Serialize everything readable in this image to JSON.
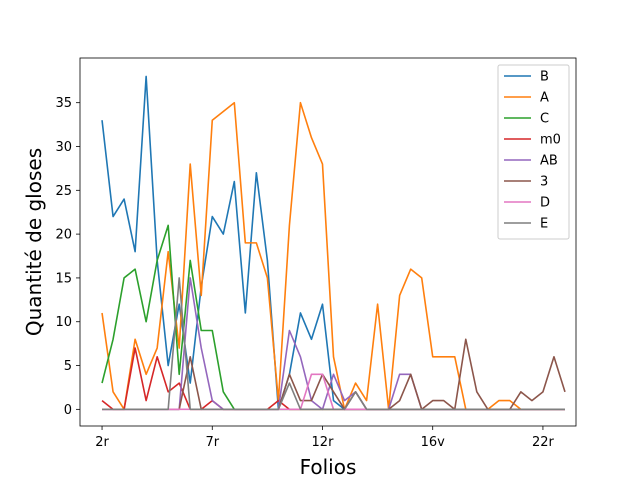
{
  "chart_data": {
    "type": "line",
    "title": "",
    "xlabel": "Folios",
    "ylabel": "Quantité de gloses",
    "x_tick_labels": [
      "2r",
      "7r",
      "12r",
      "16v",
      "22r"
    ],
    "x_tick_positions": [
      0,
      10,
      20,
      30,
      40
    ],
    "y_ticks": [
      0,
      5,
      10,
      15,
      20,
      25,
      30,
      35
    ],
    "xlim": [
      -2,
      43
    ],
    "ylim": [
      -1.9,
      40.1
    ],
    "legend_position": "top-right",
    "grid": false,
    "series": [
      {
        "name": "B",
        "color": "#1f77b4",
        "values": [
          33,
          22,
          24,
          18,
          38,
          17,
          5,
          12,
          3,
          14,
          22,
          20,
          26,
          11,
          27,
          17,
          0,
          4,
          11,
          8,
          12,
          1,
          0,
          0,
          0,
          0,
          0,
          0,
          0,
          0,
          0,
          0,
          0,
          0,
          0,
          0,
          0,
          0,
          0,
          0,
          0,
          0,
          0
        ]
      },
      {
        "name": "A",
        "color": "#ff7f0e",
        "values": [
          11,
          2,
          0,
          8,
          4,
          7,
          18,
          7,
          28,
          13,
          33,
          34,
          35,
          19,
          19,
          15,
          1,
          21,
          35,
          31,
          28,
          6,
          0,
          3,
          1,
          12,
          0,
          13,
          16,
          15,
          6,
          6,
          6,
          0,
          0,
          0,
          1,
          1,
          0,
          0,
          0,
          0,
          0
        ]
      },
      {
        "name": "C",
        "color": "#2ca02c",
        "values": [
          3,
          8,
          15,
          16,
          10,
          17,
          21,
          4,
          17,
          9,
          9,
          2,
          0,
          0,
          0,
          0,
          0,
          0,
          0,
          0,
          0,
          0,
          0,
          0,
          0,
          0,
          0,
          0,
          0,
          0,
          0,
          0,
          0,
          0,
          0,
          0,
          0,
          0,
          0,
          0,
          0,
          0,
          0
        ]
      },
      {
        "name": "m0",
        "color": "#d62728",
        "values": [
          1,
          0,
          0,
          7,
          1,
          6,
          2,
          3,
          0,
          0,
          1,
          0,
          0,
          0,
          0,
          0,
          1,
          0,
          0,
          0,
          0,
          0,
          0,
          0,
          0,
          0,
          0,
          0,
          0,
          0,
          0,
          0,
          0,
          0,
          0,
          0,
          0,
          0,
          0,
          0,
          0,
          0,
          0
        ]
      },
      {
        "name": "AB",
        "color": "#9467bd",
        "values": [
          0,
          0,
          0,
          0,
          0,
          0,
          0,
          0,
          15,
          7,
          1,
          0,
          0,
          0,
          0,
          0,
          0,
          9,
          6,
          1,
          0,
          4,
          1,
          2,
          0,
          0,
          0,
          4,
          4,
          0,
          0,
          0,
          0,
          0,
          0,
          0,
          0,
          0,
          0,
          0,
          0,
          0,
          0
        ]
      },
      {
        "name": "3",
        "color": "#8c564b",
        "values": [
          0,
          0,
          0,
          0,
          0,
          0,
          0,
          0,
          6,
          0,
          0,
          0,
          0,
          0,
          0,
          0,
          0,
          4,
          1,
          1,
          4,
          2,
          0,
          2,
          0,
          0,
          0,
          1,
          4,
          0,
          1,
          1,
          0,
          8,
          2,
          0,
          0,
          0,
          2,
          1,
          2,
          6,
          2
        ]
      },
      {
        "name": "D",
        "color": "#e377c2",
        "values": [
          0,
          0,
          0,
          0,
          0,
          0,
          0,
          0,
          0,
          0,
          0,
          0,
          0,
          0,
          0,
          0,
          0,
          0,
          0,
          4,
          4,
          0,
          0,
          0,
          0,
          0,
          0,
          0,
          0,
          0,
          0,
          0,
          0,
          0,
          0,
          0,
          0,
          0,
          0,
          0,
          0,
          0,
          0
        ]
      },
      {
        "name": "E",
        "color": "#7f7f7f",
        "values": [
          0,
          0,
          0,
          0,
          0,
          0,
          0,
          15,
          0,
          0,
          0,
          0,
          0,
          0,
          0,
          0,
          0,
          3,
          0,
          0,
          0,
          0,
          0,
          2,
          0,
          0,
          0,
          0,
          0,
          0,
          0,
          0,
          0,
          0,
          0,
          0,
          0,
          0,
          0,
          0,
          0,
          0,
          0
        ]
      }
    ]
  }
}
